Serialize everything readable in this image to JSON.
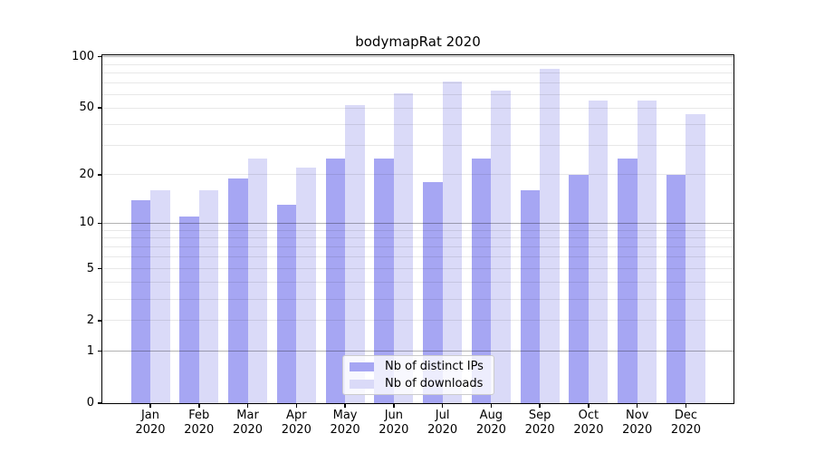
{
  "title": "bodymapRat 2020",
  "colors": {
    "distinct_ips": "#a6a6f3",
    "downloads": "#dadaf8",
    "axis": "#000000",
    "major_grid": "rgba(0,0,0,0.30)",
    "minor_grid": "rgba(0,0,0,0.09)"
  },
  "legend": {
    "items": [
      {
        "label": "Nb of distinct IPs",
        "color_key": "distinct_ips"
      },
      {
        "label": "Nb of downloads",
        "color_key": "downloads"
      }
    ]
  },
  "chart_data": {
    "type": "bar",
    "title": "bodymapRat 2020",
    "categories": [
      "Jan",
      "Feb",
      "Mar",
      "Apr",
      "May",
      "Jun",
      "Jul",
      "Aug",
      "Sep",
      "Oct",
      "Nov",
      "Dec"
    ],
    "category_year": "2020",
    "series": [
      {
        "name": "Nb of distinct IPs",
        "color_key": "distinct_ips",
        "values": [
          14,
          11,
          19,
          13,
          25,
          25,
          18,
          25,
          16,
          20,
          25,
          20
        ]
      },
      {
        "name": "Nb of downloads",
        "color_key": "downloads",
        "values": [
          16,
          16,
          25,
          22,
          52,
          61,
          72,
          63,
          85,
          55,
          55,
          46
        ]
      }
    ],
    "xlabel": "",
    "ylabel": "",
    "yscale": "log10(value+1)",
    "ylim": [
      0,
      102
    ],
    "y_ticks": [
      0,
      1,
      2,
      5,
      10,
      20,
      50,
      100
    ],
    "y_major_grid": [
      1,
      10,
      100
    ],
    "y_minor_grid": [
      2,
      3,
      4,
      5,
      6,
      7,
      8,
      9,
      20,
      30,
      40,
      50,
      60,
      70,
      80,
      90
    ],
    "grid": true,
    "legend_position": "lower center"
  }
}
